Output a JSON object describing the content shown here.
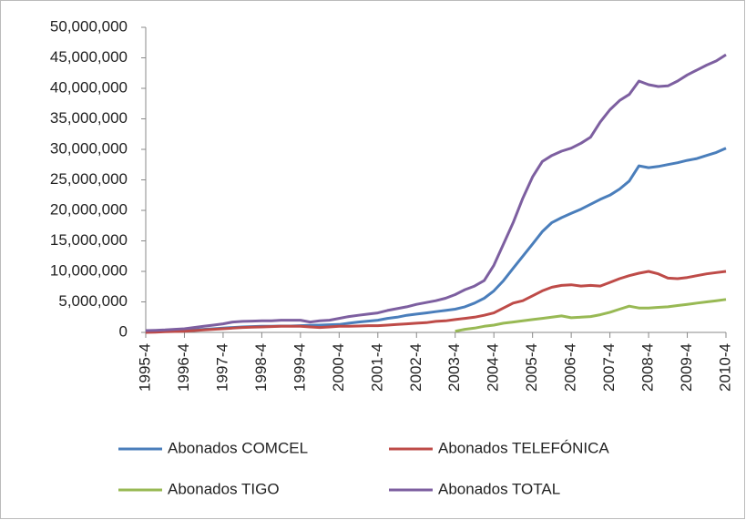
{
  "chart_data": {
    "type": "line",
    "categories": [
      "1995-4",
      null,
      null,
      null,
      "1996-4",
      null,
      null,
      null,
      "1997-4",
      null,
      null,
      null,
      "1998-4",
      null,
      null,
      null,
      "1999-4",
      null,
      null,
      null,
      "2000-4",
      null,
      null,
      null,
      "2001-4",
      null,
      null,
      null,
      "2002-4",
      null,
      null,
      null,
      "2003-4",
      null,
      null,
      null,
      "2004-4",
      null,
      null,
      null,
      "2005-4",
      null,
      null,
      null,
      "2006-4",
      null,
      null,
      null,
      "2007-4",
      null,
      null,
      null,
      "2008-4",
      null,
      null,
      null,
      "2009-4",
      null,
      null,
      null,
      "2010-4"
    ],
    "series": [
      {
        "name": "Abonados COMCEL",
        "color": "#4a7ebb",
        "values": [
          100000,
          150000,
          200000,
          250000,
          300000,
          400000,
          500000,
          600000,
          700000,
          800000,
          900000,
          950000,
          1000000,
          1000000,
          1050000,
          1050000,
          1100000,
          1150000,
          1200000,
          1250000,
          1300000,
          1500000,
          1700000,
          1850000,
          2000000,
          2300000,
          2500000,
          2800000,
          3000000,
          3200000,
          3400000,
          3600000,
          3800000,
          4200000,
          4800000,
          5600000,
          6800000,
          8500000,
          10500000,
          12500000,
          14500000,
          16500000,
          18000000,
          18800000,
          19500000,
          20200000,
          21000000,
          21800000,
          22500000,
          23500000,
          24800000,
          27300000,
          27000000,
          27200000,
          27500000,
          27800000,
          28200000,
          28500000,
          29000000,
          29500000,
          30200000
        ]
      },
      {
        "name": "Abonados TELEFÓNICA",
        "color": "#be4b48",
        "values": [
          0,
          50000,
          100000,
          150000,
          200000,
          300000,
          400000,
          500000,
          600000,
          700000,
          800000,
          850000,
          900000,
          950000,
          1000000,
          1000000,
          1000000,
          900000,
          800000,
          900000,
          1000000,
          1000000,
          1050000,
          1100000,
          1100000,
          1200000,
          1300000,
          1400000,
          1500000,
          1600000,
          1800000,
          1900000,
          2100000,
          2300000,
          2500000,
          2800000,
          3200000,
          4000000,
          4800000,
          5200000,
          6000000,
          6800000,
          7400000,
          7700000,
          7800000,
          7600000,
          7700000,
          7600000,
          8200000,
          8800000,
          9300000,
          9700000,
          10000000,
          9600000,
          8900000,
          8800000,
          9000000,
          9300000,
          9600000,
          9800000,
          10000000
        ]
      },
      {
        "name": "Abonados TIGO",
        "color": "#98b954",
        "values": [
          null,
          null,
          null,
          null,
          null,
          null,
          null,
          null,
          null,
          null,
          null,
          null,
          null,
          null,
          null,
          null,
          null,
          null,
          null,
          null,
          null,
          null,
          null,
          null,
          null,
          null,
          null,
          null,
          null,
          null,
          null,
          null,
          200000,
          500000,
          700000,
          1000000,
          1200000,
          1500000,
          1700000,
          1900000,
          2100000,
          2300000,
          2500000,
          2700000,
          2400000,
          2500000,
          2600000,
          2900000,
          3300000,
          3800000,
          4300000,
          4000000,
          4000000,
          4100000,
          4200000,
          4400000,
          4600000,
          4800000,
          5000000,
          5200000,
          5400000
        ]
      },
      {
        "name": "Abonados TOTAL",
        "color": "#7d5fa0",
        "values": [
          300000,
          350000,
          400000,
          500000,
          600000,
          800000,
          1000000,
          1200000,
          1400000,
          1700000,
          1800000,
          1850000,
          1900000,
          1900000,
          2000000,
          2000000,
          2000000,
          1700000,
          1900000,
          2000000,
          2300000,
          2600000,
          2800000,
          3000000,
          3200000,
          3600000,
          3900000,
          4200000,
          4600000,
          4900000,
          5200000,
          5600000,
          6200000,
          7000000,
          7600000,
          8500000,
          11000000,
          14500000,
          18000000,
          22000000,
          25500000,
          28000000,
          29000000,
          29700000,
          30200000,
          31000000,
          32000000,
          34500000,
          36500000,
          38000000,
          39000000,
          41200000,
          40600000,
          40300000,
          40400000,
          41200000,
          42200000,
          43000000,
          43800000,
          44500000,
          45500000
        ]
      }
    ],
    "ylim": [
      0,
      50000000
    ],
    "yticks": [
      0,
      {
        "value": 5000000,
        "label": "5,000,000"
      },
      {
        "value": 10000000,
        "label": "10,000,000"
      },
      {
        "value": 15000000,
        "label": "15,000,000"
      },
      {
        "value": 20000000,
        "label": "20,000,000"
      },
      {
        "value": 25000000,
        "label": "25,000,000"
      },
      {
        "value": 30000000,
        "label": "30,000,000"
      },
      {
        "value": 35000000,
        "label": "35,000,000"
      },
      {
        "value": 40000000,
        "label": "40,000,000"
      },
      {
        "value": 45000000,
        "label": "45,000,000"
      },
      {
        "value": 50000000,
        "label": "50,000,000"
      }
    ],
    "grid": false,
    "legend": "bottom"
  }
}
